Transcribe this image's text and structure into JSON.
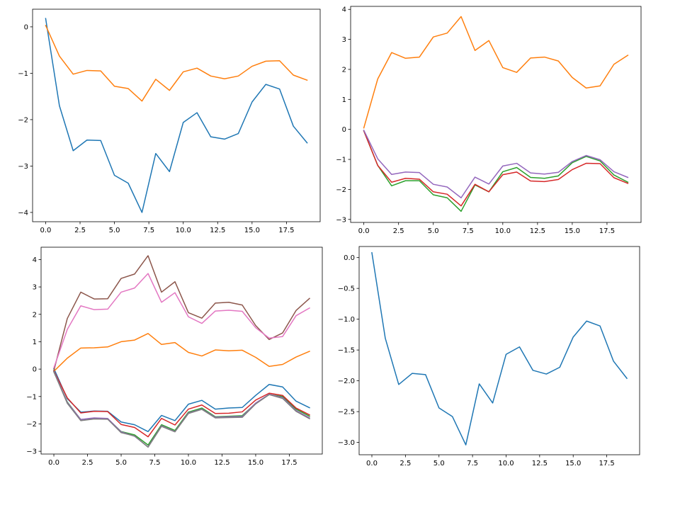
{
  "colors": {
    "C0": "#1f77b4",
    "C1": "#ff7f0e",
    "C2": "#2ca02c",
    "C3": "#d62728",
    "C4": "#9467bd",
    "C5": "#8c564b",
    "C6": "#e377c2"
  },
  "chart_data": [
    {
      "type": "line",
      "grid": false,
      "xlim": [
        -0.95,
        19.95
      ],
      "ylim": [
        -4.2,
        0.38
      ],
      "xticks": [
        0,
        2.5,
        5,
        7.5,
        10,
        12.5,
        15,
        17.5
      ],
      "xtick_labels": [
        "0.0",
        "2.5",
        "5.0",
        "7.5",
        "10.0",
        "12.5",
        "15.0",
        "17.5"
      ],
      "yticks": [
        0,
        -1,
        -2,
        -3,
        -4
      ],
      "ytick_labels": [
        "0",
        "−1",
        "−2",
        "−3",
        "−4"
      ],
      "x": [
        0,
        1,
        2,
        3,
        4,
        5,
        6,
        7,
        8,
        9,
        10,
        11,
        12,
        13,
        14,
        15,
        16,
        17,
        18,
        19
      ],
      "series": [
        {
          "color": "C0",
          "values": [
            0.18,
            -1.7,
            -2.67,
            -2.44,
            -2.45,
            -3.2,
            -3.37,
            -4.0,
            -2.73,
            -3.12,
            -2.06,
            -1.85,
            -2.37,
            -2.42,
            -2.3,
            -1.62,
            -1.24,
            -1.34,
            -2.14,
            -2.5
          ]
        },
        {
          "color": "C1",
          "values": [
            0.03,
            -0.63,
            -1.02,
            -0.94,
            -0.95,
            -1.28,
            -1.33,
            -1.6,
            -1.13,
            -1.37,
            -0.97,
            -0.89,
            -1.06,
            -1.12,
            -1.06,
            -0.85,
            -0.74,
            -0.73,
            -1.04,
            -1.15
          ]
        }
      ]
    },
    {
      "type": "line",
      "grid": false,
      "xlim": [
        -0.95,
        19.95
      ],
      "ylim": [
        -3.1,
        4.1
      ],
      "xticks": [
        0,
        2.5,
        5,
        7.5,
        10,
        12.5,
        15,
        17.5
      ],
      "xtick_labels": [
        "0.0",
        "2.5",
        "5.0",
        "7.5",
        "10.0",
        "12.5",
        "15.0",
        "17.5"
      ],
      "yticks": [
        4,
        3,
        2,
        1,
        0,
        -1,
        -2,
        -3
      ],
      "ytick_labels": [
        "4",
        "3",
        "2",
        "1",
        "0",
        "−1",
        "−2",
        "−3"
      ],
      "x": [
        0,
        1,
        2,
        3,
        4,
        5,
        6,
        7,
        8,
        9,
        10,
        11,
        12,
        13,
        14,
        15,
        16,
        17,
        18,
        19
      ],
      "series": [
        {
          "color": "C1",
          "values": [
            0.05,
            1.68,
            2.56,
            2.37,
            2.41,
            3.08,
            3.21,
            3.76,
            2.63,
            2.96,
            2.06,
            1.9,
            2.38,
            2.41,
            2.28,
            1.73,
            1.38,
            1.45,
            2.17,
            2.47
          ]
        },
        {
          "color": "C2",
          "values": [
            -0.05,
            -1.2,
            -1.88,
            -1.71,
            -1.71,
            -2.18,
            -2.28,
            -2.73,
            -1.85,
            -2.08,
            -1.41,
            -1.27,
            -1.6,
            -1.63,
            -1.55,
            -1.11,
            -0.9,
            -1.05,
            -1.52,
            -1.76
          ]
        },
        {
          "color": "C3",
          "values": [
            -0.05,
            -1.2,
            -1.76,
            -1.63,
            -1.66,
            -2.08,
            -2.16,
            -2.55,
            -1.83,
            -2.08,
            -1.51,
            -1.42,
            -1.72,
            -1.74,
            -1.67,
            -1.34,
            -1.13,
            -1.14,
            -1.61,
            -1.8
          ]
        },
        {
          "color": "C4",
          "values": [
            -0.03,
            -0.98,
            -1.5,
            -1.42,
            -1.44,
            -1.83,
            -1.92,
            -2.28,
            -1.59,
            -1.82,
            -1.22,
            -1.13,
            -1.45,
            -1.49,
            -1.43,
            -1.07,
            -0.87,
            -1.01,
            -1.41,
            -1.6
          ]
        }
      ]
    },
    {
      "type": "line",
      "grid": false,
      "xlim": [
        -0.95,
        19.95
      ],
      "ylim": [
        -3.1,
        4.45
      ],
      "xticks": [
        0,
        2.5,
        5,
        7.5,
        10,
        12.5,
        15,
        17.5
      ],
      "xtick_labels": [
        "0.0",
        "2.5",
        "5.0",
        "7.5",
        "10.0",
        "12.5",
        "15.0",
        "17.5"
      ],
      "yticks": [
        4,
        3,
        2,
        1,
        0,
        -1,
        -2,
        -3
      ],
      "ytick_labels": [
        "4",
        "3",
        "2",
        "1",
        "0",
        "−1",
        "−2",
        "−3"
      ],
      "x": [
        0,
        1,
        2,
        3,
        4,
        5,
        6,
        7,
        8,
        9,
        10,
        11,
        12,
        13,
        14,
        15,
        16,
        17,
        18,
        19
      ],
      "series": [
        {
          "color": "C0",
          "values": [
            0.02,
            -1.08,
            -1.57,
            -1.53,
            -1.54,
            -1.93,
            -2.03,
            -2.28,
            -1.69,
            -1.88,
            -1.28,
            -1.14,
            -1.46,
            -1.42,
            -1.4,
            -0.96,
            -0.56,
            -0.65,
            -1.17,
            -1.41
          ]
        },
        {
          "color": "C1",
          "values": [
            -0.08,
            0.4,
            0.77,
            0.78,
            0.81,
            1.0,
            1.06,
            1.3,
            0.9,
            0.97,
            0.61,
            0.48,
            0.7,
            0.67,
            0.69,
            0.43,
            0.1,
            0.17,
            0.44,
            0.65
          ]
        },
        {
          "color": "C2",
          "values": [
            -0.1,
            -1.2,
            -1.84,
            -1.8,
            -1.81,
            -2.28,
            -2.4,
            -2.77,
            -2.03,
            -2.24,
            -1.57,
            -1.42,
            -1.74,
            -1.72,
            -1.7,
            -1.25,
            -0.93,
            -1.0,
            -1.46,
            -1.72
          ]
        },
        {
          "color": "C3",
          "values": [
            -0.06,
            -1.05,
            -1.6,
            -1.54,
            -1.55,
            -2.02,
            -2.13,
            -2.47,
            -1.8,
            -2.04,
            -1.46,
            -1.31,
            -1.62,
            -1.61,
            -1.56,
            -1.13,
            -0.88,
            -0.96,
            -1.42,
            -1.67
          ]
        },
        {
          "color": "C4",
          "values": [
            -0.08,
            -1.22,
            -1.84,
            -1.78,
            -1.8,
            -2.29,
            -2.45,
            -2.84,
            -2.07,
            -2.28,
            -1.6,
            -1.46,
            -1.76,
            -1.74,
            -1.73,
            -1.24,
            -0.92,
            -1.04,
            -1.51,
            -1.78
          ]
        },
        {
          "color": "C5",
          "values": [
            -0.05,
            1.85,
            2.81,
            2.56,
            2.57,
            3.31,
            3.47,
            4.14,
            2.81,
            3.19,
            2.06,
            1.86,
            2.41,
            2.44,
            2.34,
            1.59,
            1.08,
            1.32,
            2.14,
            2.58
          ]
        },
        {
          "color": "C6",
          "values": [
            0.05,
            1.45,
            2.31,
            2.17,
            2.19,
            2.81,
            2.96,
            3.49,
            2.44,
            2.79,
            1.91,
            1.67,
            2.12,
            2.15,
            2.11,
            1.51,
            1.13,
            1.19,
            1.95,
            2.23
          ]
        },
        {
          "color": "C7",
          "values": [
            -0.1,
            -1.25,
            -1.88,
            -1.82,
            -1.83,
            -2.32,
            -2.44,
            -2.85,
            -2.09,
            -2.29,
            -1.62,
            -1.47,
            -1.78,
            -1.77,
            -1.76,
            -1.27,
            -0.93,
            -1.07,
            -1.54,
            -1.81
          ]
        }
      ]
    },
    {
      "type": "line",
      "grid": false,
      "xlim": [
        -0.95,
        19.95
      ],
      "ylim": [
        -3.2,
        0.18
      ],
      "xticks": [
        0,
        2.5,
        5,
        7.5,
        10,
        12.5,
        15,
        17.5
      ],
      "xtick_labels": [
        "0.0",
        "2.5",
        "5.0",
        "7.5",
        "10.0",
        "12.5",
        "15.0",
        "17.5"
      ],
      "yticks": [
        0,
        -0.5,
        -1,
        -1.5,
        -2,
        -2.5,
        -3
      ],
      "ytick_labels": [
        "0.0",
        "−0.5",
        "−1.0",
        "−1.5",
        "−2.0",
        "−2.5",
        "−3.0"
      ],
      "x": [
        0,
        1,
        2,
        3,
        4,
        5,
        6,
        7,
        8,
        9,
        10,
        11,
        12,
        13,
        14,
        15,
        16,
        17,
        18,
        19
      ],
      "series": [
        {
          "color": "C0",
          "values": [
            0.08,
            -1.31,
            -2.06,
            -1.88,
            -1.9,
            -2.44,
            -2.58,
            -3.04,
            -2.05,
            -2.36,
            -1.57,
            -1.45,
            -1.83,
            -1.89,
            -1.78,
            -1.29,
            -1.03,
            -1.11,
            -1.68,
            -1.96
          ]
        }
      ]
    }
  ]
}
